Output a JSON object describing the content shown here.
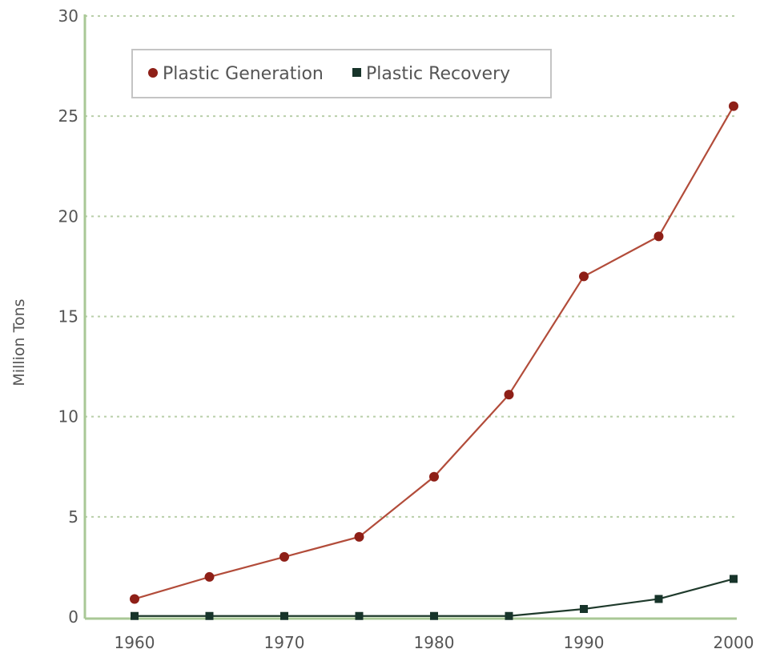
{
  "chart_data": {
    "type": "line",
    "title": "",
    "xlabel": "",
    "ylabel": "Million Tons",
    "x": [
      1960,
      1965,
      1970,
      1975,
      1980,
      1985,
      1990,
      1995,
      2000
    ],
    "x_ticks": [
      "1960",
      "1970",
      "1980",
      "1990",
      "2000"
    ],
    "x_tick_values": [
      1960,
      1970,
      1980,
      1990,
      2000
    ],
    "xlim": [
      1960,
      2000
    ],
    "y_ticks": [
      "0",
      "5",
      "10",
      "15",
      "20",
      "25",
      "30"
    ],
    "y_tick_values": [
      0,
      5,
      10,
      15,
      20,
      25,
      30
    ],
    "ylim": [
      0,
      30
    ],
    "grid": "horizontal dashed",
    "legend_position": "top-left",
    "series": [
      {
        "name": "Plastic Generation",
        "marker": "circle",
        "color": "#b24c3a",
        "marker_color": "#8e1f17",
        "values": [
          0.9,
          2.0,
          3.0,
          4.0,
          7.0,
          11.1,
          17.0,
          19.0,
          25.5
        ]
      },
      {
        "name": "Plastic Recovery",
        "marker": "square",
        "color": "#1f3a2c",
        "marker_color": "#17342a",
        "values": [
          0.05,
          0.05,
          0.05,
          0.05,
          0.05,
          0.05,
          0.4,
          0.9,
          1.9
        ]
      }
    ]
  }
}
